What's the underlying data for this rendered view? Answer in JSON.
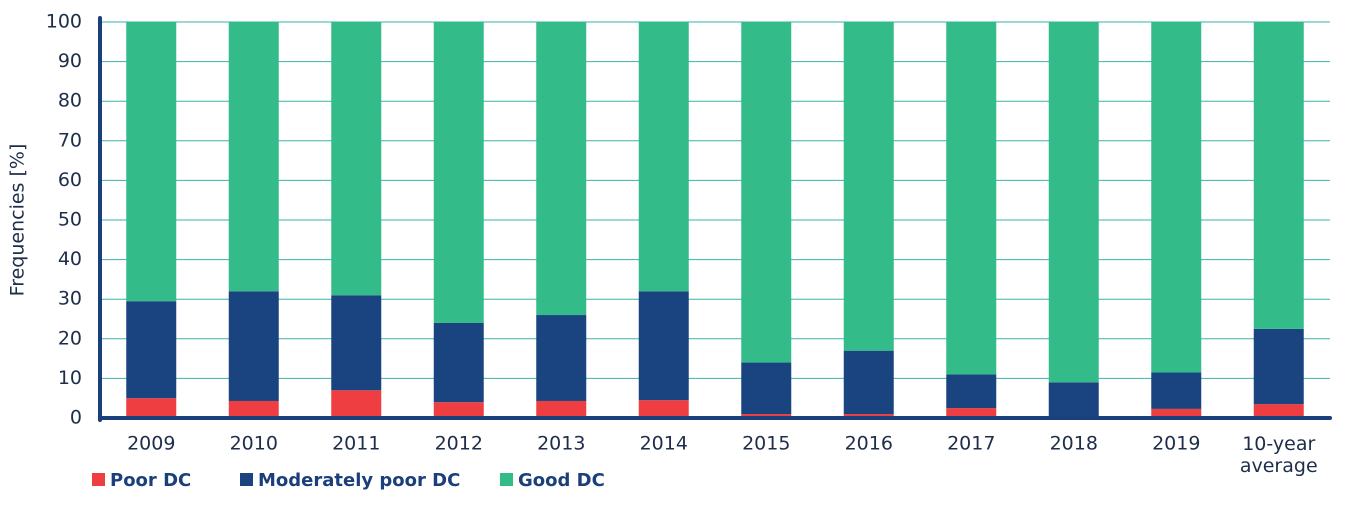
{
  "chart_data": {
    "type": "stacked_bar",
    "y_label": "Frequencies [%]",
    "categories": [
      "2009",
      "2010",
      "2011",
      "2012",
      "2013",
      "2014",
      "2015",
      "2016",
      "2017",
      "2018",
      "2019",
      "10-year average"
    ],
    "series": [
      {
        "name": "Poor DC",
        "color": "#ef3e42",
        "values": [
          5,
          4.3,
          7,
          4,
          4.3,
          4.5,
          1,
          1,
          2.5,
          0,
          2.3,
          3.5
        ]
      },
      {
        "name": "Moderately poor DC",
        "color": "#1a4480",
        "values": [
          24.5,
          27.7,
          24,
          20,
          21.7,
          27.5,
          13,
          16,
          8.5,
          9,
          9.2,
          19
        ]
      },
      {
        "name": "Good DC",
        "color": "#33bb8a",
        "values": [
          70.5,
          68,
          69,
          76,
          74,
          68,
          86,
          83,
          89,
          91,
          88.5,
          77.5
        ]
      }
    ],
    "ylim": [
      0,
      100
    ],
    "yticks": [
      0,
      10,
      20,
      30,
      40,
      50,
      60,
      70,
      80,
      90,
      100
    ],
    "grid": true
  }
}
